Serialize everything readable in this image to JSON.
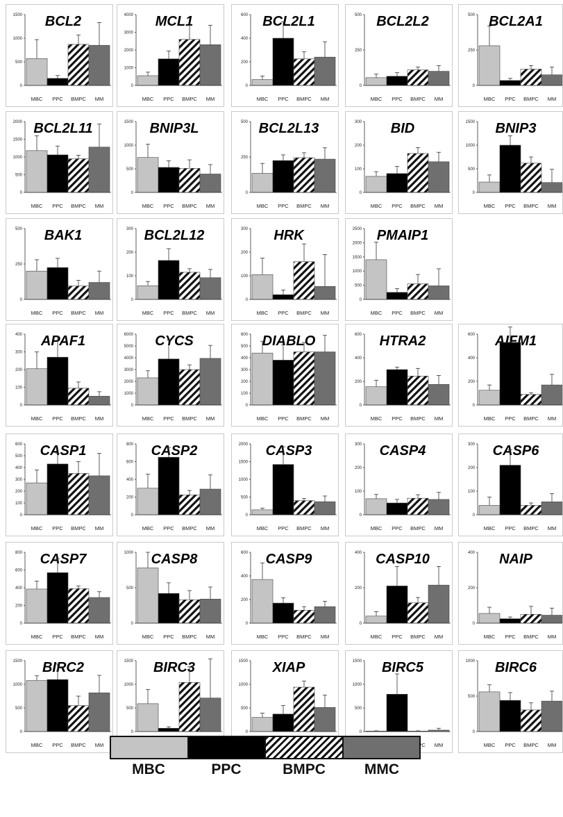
{
  "legend": [
    {
      "label": "MBC",
      "color": "#c4c4c4",
      "pattern": "solid"
    },
    {
      "label": "PPC",
      "color": "#000000",
      "pattern": "solid"
    },
    {
      "label": "BMPC",
      "color": "#ffffff",
      "pattern": "hatch"
    },
    {
      "label": "MMC",
      "color": "#6f6f6f",
      "pattern": "solid"
    }
  ],
  "categories": [
    "MBC",
    "PPC",
    "BMPC",
    "MM"
  ],
  "chart_data": [
    {
      "type": "bar",
      "title": "BCL2",
      "categories": [
        "MBC",
        "PPC",
        "BMPC",
        "MM"
      ],
      "ylim": [
        0,
        1500
      ],
      "yticks": [
        0,
        500,
        1000,
        1500
      ],
      "values": [
        570,
        150,
        870,
        850
      ],
      "errors": [
        400,
        60,
        200,
        480
      ]
    },
    {
      "type": "bar",
      "title": "MCL1",
      "categories": [
        "MBC",
        "PPC",
        "BMPC",
        "MM"
      ],
      "ylim": [
        0,
        4000
      ],
      "yticks": [
        0,
        1000,
        2000,
        3000,
        4000
      ],
      "values": [
        550,
        1500,
        2600,
        2300
      ],
      "errors": [
        200,
        450,
        800,
        1100
      ]
    },
    {
      "type": "bar",
      "title": "BCL2L1",
      "categories": [
        "MBC",
        "PPC",
        "BMPC",
        "MM"
      ],
      "ylim": [
        0,
        600
      ],
      "yticks": [
        0,
        200,
        400,
        600
      ],
      "values": [
        50,
        400,
        225,
        240
      ],
      "errors": [
        30,
        140,
        60,
        130
      ]
    },
    {
      "type": "bar",
      "title": "BCL2L2",
      "categories": [
        "MBC",
        "PPC",
        "BMPC",
        "MM"
      ],
      "ylim": [
        0,
        500
      ],
      "yticks": [
        0,
        250,
        500
      ],
      "values": [
        55,
        65,
        110,
        100
      ],
      "errors": [
        25,
        25,
        20,
        40
      ]
    },
    {
      "type": "bar",
      "title": "BCL2A1",
      "categories": [
        "MBC",
        "PPC",
        "BMPC",
        "MM"
      ],
      "ylim": [
        0,
        500
      ],
      "yticks": [
        0,
        250,
        500
      ],
      "values": [
        280,
        35,
        115,
        75
      ],
      "errors": [
        140,
        15,
        25,
        55
      ]
    },
    {
      "type": "bar",
      "title": "BCL2L11",
      "categories": [
        "MBC",
        "PPC",
        "BMPC",
        "MM"
      ],
      "ylim": [
        0,
        2000
      ],
      "yticks": [
        0,
        500,
        1000,
        1500,
        2000
      ],
      "values": [
        1180,
        1060,
        950,
        1280
      ],
      "errors": [
        420,
        250,
        100,
        650
      ]
    },
    {
      "type": "bar",
      "title": "BNIP3L",
      "categories": [
        "MBC",
        "PPC",
        "BMPC",
        "MM"
      ],
      "ylim": [
        0,
        1500
      ],
      "yticks": [
        0,
        500,
        1000,
        1500
      ],
      "values": [
        740,
        530,
        510,
        390
      ],
      "errors": [
        280,
        140,
        180,
        200
      ]
    },
    {
      "type": "bar",
      "title": "BCL2L13",
      "categories": [
        "MBC",
        "PPC",
        "BMPC",
        "MM"
      ],
      "ylim": [
        0,
        500
      ],
      "yticks": [
        0,
        250,
        500
      ],
      "values": [
        135,
        225,
        245,
        235
      ],
      "errors": [
        70,
        40,
        35,
        80
      ]
    },
    {
      "type": "bar",
      "title": "BID",
      "categories": [
        "MBC",
        "PPC",
        "BMPC",
        "MM"
      ],
      "ylim": [
        0,
        300
      ],
      "yticks": [
        0,
        100,
        200,
        300
      ],
      "values": [
        68,
        80,
        165,
        130
      ],
      "errors": [
        20,
        30,
        25,
        40
      ]
    },
    {
      "type": "bar",
      "title": "BNIP3",
      "categories": [
        "MBC",
        "PPC",
        "BMPC",
        "MM"
      ],
      "ylim": [
        0,
        1500
      ],
      "yticks": [
        0,
        500,
        1000,
        1500
      ],
      "values": [
        220,
        1000,
        620,
        210
      ],
      "errors": [
        150,
        200,
        130,
        280
      ]
    },
    {
      "type": "bar",
      "title": "BAK1",
      "categories": [
        "MBC",
        "PPC",
        "BMPC",
        "MM"
      ],
      "ylim": [
        0,
        500
      ],
      "yticks": [
        0,
        250,
        500
      ],
      "values": [
        200,
        225,
        95,
        120
      ],
      "errors": [
        80,
        65,
        40,
        80
      ]
    },
    {
      "type": "bar",
      "title": "BCL2L12",
      "categories": [
        "MBC",
        "PPC",
        "BMPC",
        "MM"
      ],
      "ylim": [
        0,
        300
      ],
      "yticks": [
        0,
        100,
        200,
        300
      ],
      "values": [
        58,
        165,
        115,
        92
      ],
      "errors": [
        18,
        50,
        15,
        35
      ]
    },
    {
      "type": "bar",
      "title": "HRK",
      "categories": [
        "MBC",
        "PPC",
        "BMPC",
        "MM"
      ],
      "ylim": [
        0,
        300
      ],
      "yticks": [
        0,
        100,
        200,
        300
      ],
      "values": [
        105,
        20,
        160,
        55
      ],
      "errors": [
        70,
        20,
        75,
        135
      ]
    },
    {
      "type": "bar",
      "title": "PMAIP1",
      "categories": [
        "MBC",
        "PPC",
        "BMPC",
        "MM"
      ],
      "ylim": [
        0,
        2500
      ],
      "yticks": [
        0,
        500,
        1000,
        1500,
        2000,
        2500
      ],
      "values": [
        1400,
        250,
        550,
        480
      ],
      "errors": [
        620,
        130,
        330,
        600
      ]
    },
    {
      "type": "bar",
      "title": "APAF1",
      "categories": [
        "MBC",
        "PPC",
        "BMPC",
        "MM"
      ],
      "ylim": [
        0,
        400
      ],
      "yticks": [
        0,
        100,
        200,
        300,
        400
      ],
      "values": [
        205,
        270,
        95,
        50
      ],
      "errors": [
        95,
        115,
        35,
        25
      ]
    },
    {
      "type": "bar",
      "title": "CYCS",
      "categories": [
        "MBC",
        "PPC",
        "BMPC",
        "MM"
      ],
      "ylim": [
        0,
        6000
      ],
      "yticks": [
        0,
        1000,
        2000,
        3000,
        4000,
        5000,
        6000
      ],
      "values": [
        2300,
        3900,
        3000,
        3950
      ],
      "errors": [
        600,
        1600,
        400,
        1100
      ]
    },
    {
      "type": "bar",
      "title": "DIABLO",
      "categories": [
        "MBC",
        "PPC",
        "BMPC",
        "MM"
      ],
      "ylim": [
        0,
        600
      ],
      "yticks": [
        0,
        100,
        200,
        300,
        400,
        500,
        600
      ],
      "values": [
        440,
        380,
        450,
        450
      ],
      "errors": [
        100,
        130,
        80,
        140
      ]
    },
    {
      "type": "bar",
      "title": "HTRA2",
      "categories": [
        "MBC",
        "PPC",
        "BMPC",
        "MM"
      ],
      "ylim": [
        0,
        600
      ],
      "yticks": [
        0,
        200,
        400,
        600
      ],
      "values": [
        155,
        300,
        245,
        175
      ],
      "errors": [
        55,
        20,
        65,
        75
      ]
    },
    {
      "type": "bar",
      "title": "AIFM1",
      "categories": [
        "MBC",
        "PPC",
        "BMPC",
        "MM"
      ],
      "ylim": [
        0,
        600
      ],
      "yticks": [
        0,
        200,
        400,
        600
      ],
      "values": [
        125,
        530,
        90,
        170
      ],
      "errors": [
        45,
        130,
        15,
        90
      ]
    },
    {
      "type": "bar",
      "title": "CASP1",
      "categories": [
        "MBC",
        "PPC",
        "BMPC",
        "MM"
      ],
      "ylim": [
        0,
        600
      ],
      "yticks": [
        0,
        100,
        200,
        300,
        400,
        500,
        600
      ],
      "values": [
        270,
        430,
        350,
        330
      ],
      "errors": [
        110,
        90,
        100,
        190
      ]
    },
    {
      "type": "bar",
      "title": "CASP2",
      "categories": [
        "MBC",
        "PPC",
        "BMPC",
        "MM"
      ],
      "ylim": [
        0,
        800
      ],
      "yticks": [
        0,
        200,
        400,
        600,
        800
      ],
      "values": [
        300,
        650,
        225,
        290
      ],
      "errors": [
        160,
        110,
        50,
        160
      ]
    },
    {
      "type": "bar",
      "title": "CASP3",
      "categories": [
        "MBC",
        "PPC",
        "BMPC",
        "MM"
      ],
      "ylim": [
        0,
        2000
      ],
      "yticks": [
        0,
        500,
        1000,
        1500,
        2000
      ],
      "values": [
        140,
        1420,
        400,
        370
      ],
      "errors": [
        50,
        500,
        60,
        160
      ]
    },
    {
      "type": "bar",
      "title": "CASP4",
      "categories": [
        "MBC",
        "PPC",
        "BMPC",
        "MM"
      ],
      "ylim": [
        0,
        300
      ],
      "yticks": [
        0,
        100,
        200,
        300
      ],
      "values": [
        68,
        50,
        70,
        65
      ],
      "errors": [
        18,
        15,
        15,
        30
      ]
    },
    {
      "type": "bar",
      "title": "CASP6",
      "categories": [
        "MBC",
        "PPC",
        "BMPC",
        "MM"
      ],
      "ylim": [
        0,
        300
      ],
      "yticks": [
        0,
        100,
        200,
        300
      ],
      "values": [
        40,
        210,
        40,
        55
      ],
      "errors": [
        35,
        65,
        10,
        35
      ]
    },
    {
      "type": "bar",
      "title": "CASP7",
      "categories": [
        "MBC",
        "PPC",
        "BMPC",
        "MM"
      ],
      "ylim": [
        0,
        800
      ],
      "yticks": [
        0,
        200,
        400,
        600,
        800
      ],
      "values": [
        385,
        570,
        390,
        290
      ],
      "errors": [
        90,
        160,
        30,
        65
      ]
    },
    {
      "type": "bar",
      "title": "CASP8",
      "categories": [
        "MBC",
        "PPC",
        "BMPC",
        "MM"
      ],
      "ylim": [
        0,
        1000
      ],
      "yticks": [
        0,
        500,
        1000
      ],
      "values": [
        780,
        420,
        330,
        340
      ],
      "errors": [
        220,
        150,
        130,
        170
      ]
    },
    {
      "type": "bar",
      "title": "CASP9",
      "categories": [
        "MBC",
        "PPC",
        "BMPC",
        "MM"
      ],
      "ylim": [
        0,
        600
      ],
      "yticks": [
        0,
        200,
        400,
        600
      ],
      "values": [
        370,
        170,
        110,
        140
      ],
      "errors": [
        140,
        45,
        30,
        45
      ]
    },
    {
      "type": "bar",
      "title": "CASP10",
      "categories": [
        "MBC",
        "PPC",
        "BMPC",
        "MM"
      ],
      "ylim": [
        0,
        400
      ],
      "yticks": [
        0,
        200,
        400
      ],
      "values": [
        40,
        210,
        115,
        215
      ],
      "errors": [
        25,
        110,
        30,
        105
      ]
    },
    {
      "type": "bar",
      "title": "NAIP",
      "categories": [
        "MBC",
        "PPC",
        "BMPC",
        "MM"
      ],
      "ylim": [
        0,
        400
      ],
      "yticks": [
        0,
        200,
        400
      ],
      "values": [
        55,
        25,
        50,
        45
      ],
      "errors": [
        35,
        10,
        45,
        40
      ]
    },
    {
      "type": "bar",
      "title": "BIRC2",
      "categories": [
        "MBC",
        "PPC",
        "BMPC",
        "MM"
      ],
      "ylim": [
        0,
        1500
      ],
      "yticks": [
        0,
        500,
        1000,
        1500
      ],
      "values": [
        1080,
        1100,
        550,
        820
      ],
      "errors": [
        100,
        330,
        200,
        370
      ]
    },
    {
      "type": "bar",
      "title": "BIRC3",
      "categories": [
        "MBC",
        "PPC",
        "BMPC",
        "MM"
      ],
      "ylim": [
        0,
        1500
      ],
      "yticks": [
        0,
        500,
        1000,
        1500
      ],
      "values": [
        590,
        70,
        1040,
        710
      ],
      "errors": [
        300,
        30,
        330,
        830
      ]
    },
    {
      "type": "bar",
      "title": "XIAP",
      "categories": [
        "MBC",
        "PPC",
        "BMPC",
        "MM"
      ],
      "ylim": [
        0,
        1500
      ],
      "yticks": [
        0,
        500,
        1000,
        1500
      ],
      "values": [
        300,
        370,
        940,
        510
      ],
      "errors": [
        90,
        180,
        130,
        260
      ]
    },
    {
      "type": "bar",
      "title": "BIRC5",
      "categories": [
        "MBC",
        "PPC",
        "BMPC",
        "MM"
      ],
      "ylim": [
        0,
        1500
      ],
      "yticks": [
        0,
        500,
        1000,
        1500
      ],
      "values": [
        10,
        790,
        10,
        30
      ],
      "errors": [
        5,
        430,
        5,
        40
      ]
    },
    {
      "type": "bar",
      "title": "BIRC6",
      "categories": [
        "MBC",
        "PPC",
        "BMPC",
        "MM"
      ],
      "ylim": [
        0,
        1000
      ],
      "yticks": [
        0,
        500,
        1000
      ],
      "values": [
        560,
        440,
        305,
        430
      ],
      "errors": [
        100,
        110,
        100,
        140
      ]
    }
  ]
}
